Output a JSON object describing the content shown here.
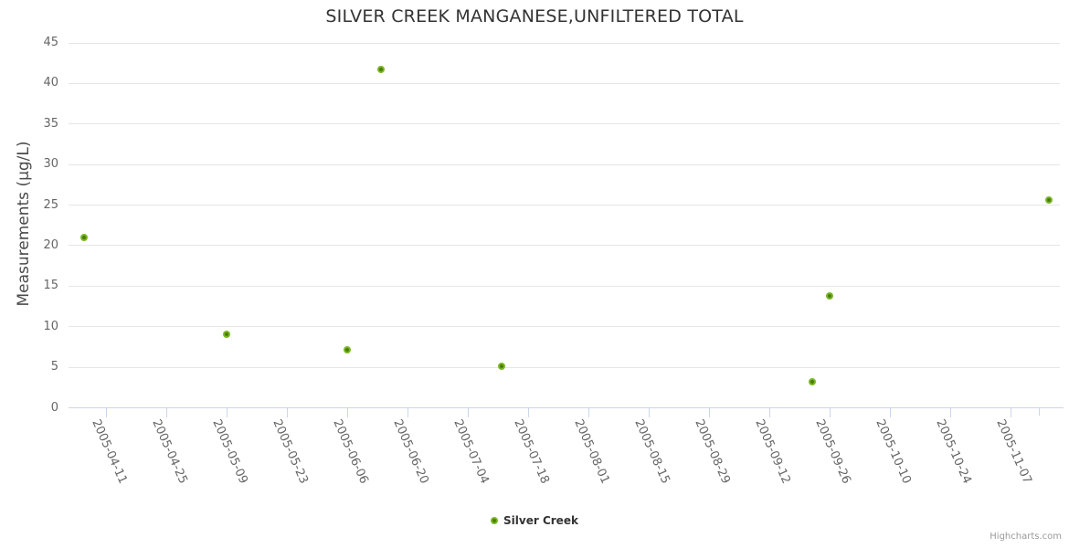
{
  "header": {
    "title": "SILVER CREEK MANGANESE,UNFILTERED TOTAL"
  },
  "chart_data": {
    "type": "scatter",
    "title": "SILVER CREEK MANGANESE,UNFILTERED TOTAL",
    "xlabel": "",
    "ylabel": "Measurements (µg/L)",
    "ylim": [
      0,
      45
    ],
    "yticks": [
      0,
      5,
      10,
      15,
      20,
      25,
      30,
      35,
      40,
      45
    ],
    "xtick_labels": [
      "2005-04-11",
      "2005-04-25",
      "2005-05-09",
      "2005-05-23",
      "2005-06-06",
      "2005-06-20",
      "2005-07-04",
      "2005-07-18",
      "2005-08-01",
      "2005-08-15",
      "2005-08-29",
      "2005-09-12",
      "2005-09-26",
      "2005-10-10",
      "2005-10-24",
      "2005-11-07"
    ],
    "grid": "horizontal-only",
    "legend_position": "bottom-center",
    "series": [
      {
        "name": "Silver Creek",
        "color": "#7bb92a",
        "marker_core_color": "#4a7c04",
        "points": [
          {
            "x": "2005-04-06",
            "y": 21.0
          },
          {
            "x": "2005-05-09",
            "y": 9.1
          },
          {
            "x": "2005-06-06",
            "y": 7.2
          },
          {
            "x": "2005-06-14",
            "y": 41.7
          },
          {
            "x": "2005-07-12",
            "y": 5.1
          },
          {
            "x": "2005-09-22",
            "y": 3.2
          },
          {
            "x": "2005-09-26",
            "y": 13.8
          },
          {
            "x": "2005-11-16",
            "y": 25.6
          }
        ]
      }
    ],
    "colors": {
      "gridline": "#e6e6e6",
      "axis_line": "#ccd6eb",
      "tick_label": "#666666",
      "title": "#333333"
    }
  },
  "legend": {
    "label": "Silver Creek"
  },
  "credits": {
    "label": "Highcharts.com"
  }
}
